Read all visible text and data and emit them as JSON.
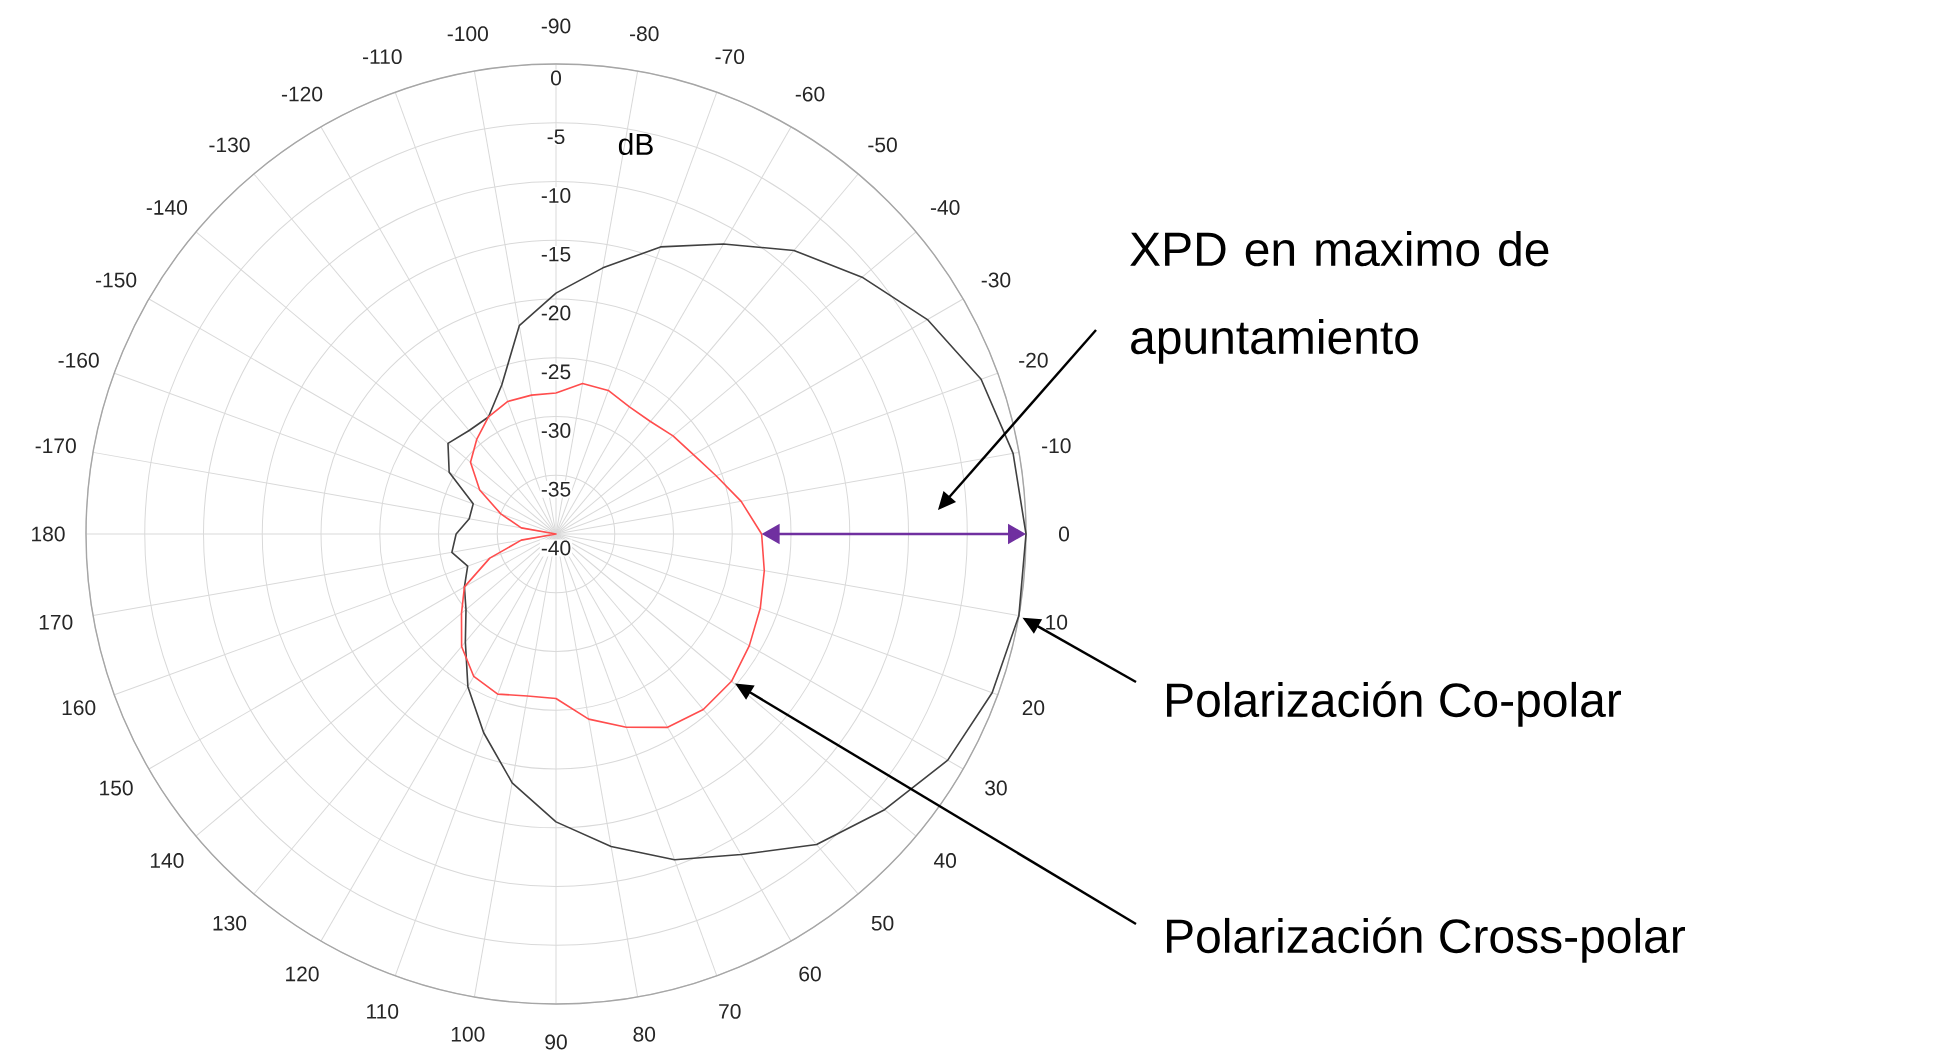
{
  "chart_data": {
    "type": "radar",
    "ylabel": "dB",
    "categories": [
      "-90",
      "-80",
      "-70",
      "-60",
      "-50",
      "-40",
      "-30",
      "-20",
      "-10",
      "0",
      "10",
      "20",
      "30",
      "40",
      "50",
      "60",
      "70",
      "80",
      "90",
      "100",
      "110",
      "120",
      "130",
      "140",
      "150",
      "160",
      "170",
      "180",
      "-170",
      "-160",
      "-150",
      "-140",
      "-130",
      "-120",
      "-110",
      "-100"
    ],
    "ylim": [
      -40,
      0
    ],
    "yticks": [
      -40,
      -35,
      -30,
      -25,
      -20,
      -15,
      -10,
      -5,
      0
    ],
    "grid": true,
    "series": [
      {
        "name": "Polarización Co-polar",
        "color": "#404040",
        "values": [
          -19.5,
          -17,
          -14,
          -11.5,
          -8.5,
          -6,
          -3.5,
          -1.5,
          -0.5,
          0,
          0,
          -0.5,
          -1.5,
          -3.5,
          -5.5,
          -8.5,
          -10.5,
          -13,
          -15.5,
          -18.5,
          -22,
          -25,
          -28,
          -30,
          -31,
          -32,
          -31,
          -31.5,
          -32.5,
          -32.5,
          -29.5,
          -28,
          -28.5,
          -28.5,
          -26.5,
          -22
        ]
      },
      {
        "name": "Polarización Cross-polar",
        "color": "#ff4d4d",
        "values": [
          -28,
          -27,
          -27,
          -27.5,
          -27.5,
          -27,
          -26.5,
          -25.5,
          -24,
          -22.5,
          -22,
          -21.5,
          -21,
          -20.5,
          -20.5,
          -21,
          -22.5,
          -24,
          -26,
          -26,
          -25.5,
          -26,
          -27.5,
          -29.5,
          -31,
          -34,
          -37,
          -40,
          -37,
          -35,
          -32.5,
          -30.5,
          -29.5,
          -28.5,
          -28,
          -28
        ]
      }
    ],
    "annotations": [
      {
        "text": "XPD en maximo de apuntamiento",
        "x": "0"
      }
    ]
  }
}
